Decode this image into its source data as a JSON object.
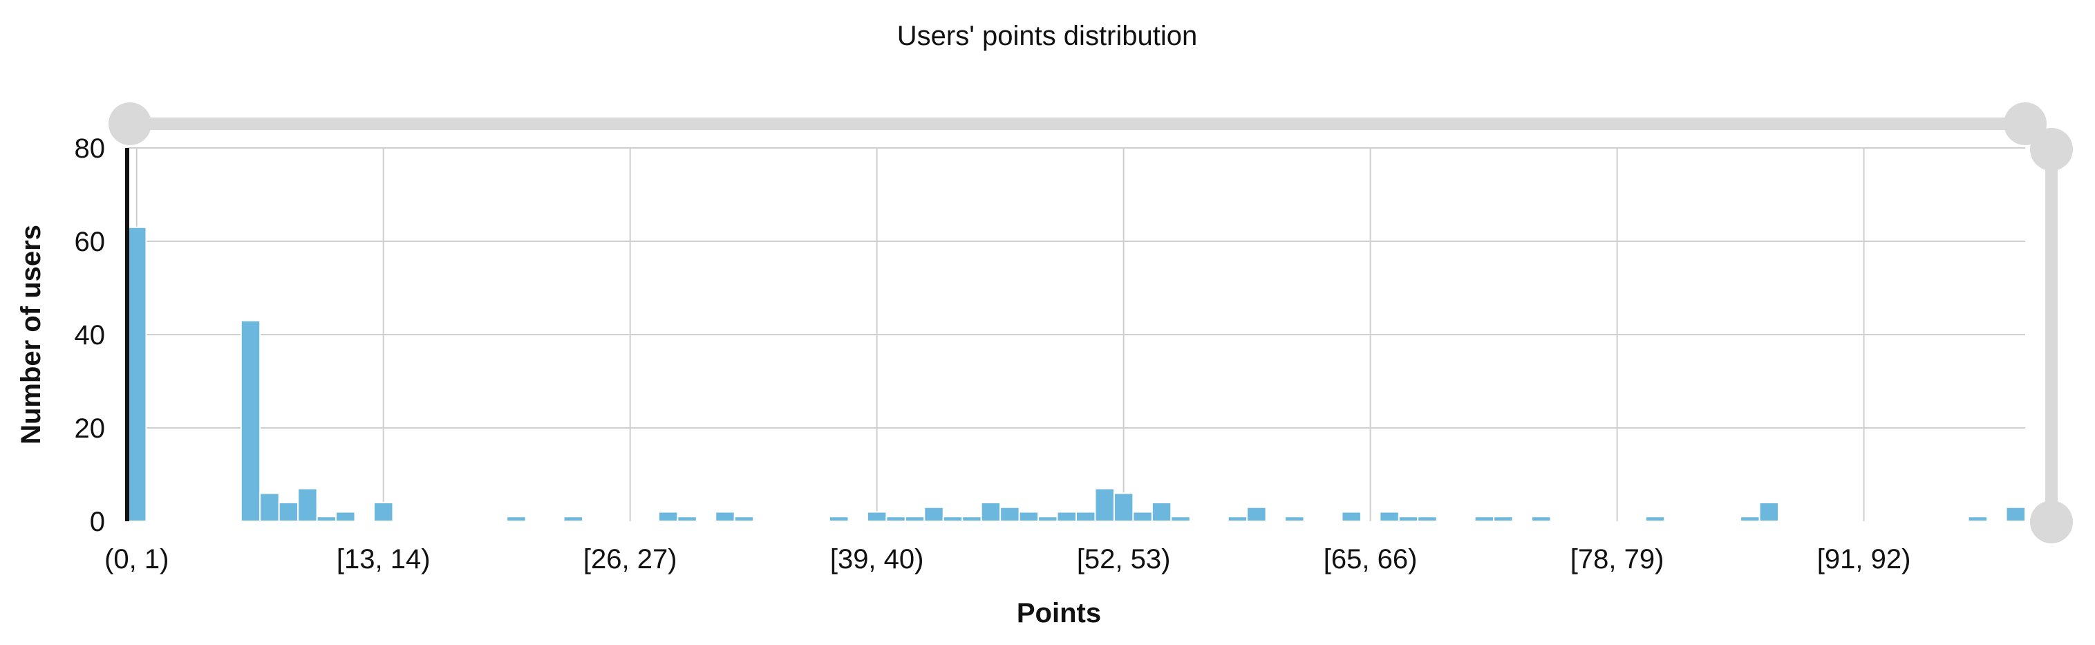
{
  "chart_data": {
    "type": "bar",
    "title": "Users' points distribution",
    "xlabel": "Points",
    "ylabel": "Number of users",
    "ylim": [
      0,
      80
    ],
    "yticks": [
      0,
      20,
      40,
      60,
      80
    ],
    "tick_labels": [
      "(0, 1)",
      "[13, 14)",
      "[26, 27)",
      "[39, 40)",
      "[52, 53)",
      "[65, 66)",
      "[78, 79)",
      "[91, 92)"
    ],
    "tick_bins": [
      0,
      13,
      26,
      39,
      52,
      65,
      78,
      91
    ],
    "bin_count": 100,
    "grid": true,
    "colors": {
      "bar": "#6bb7dd",
      "grid": "#cfcfcf",
      "handle": "#d9d9d9"
    },
    "values": [
      63,
      0,
      0,
      0,
      0,
      0,
      43,
      6,
      4,
      7,
      1,
      2,
      0,
      4,
      0,
      0,
      0,
      0,
      0,
      0,
      1,
      0,
      0,
      1,
      0,
      0,
      0,
      0,
      2,
      1,
      0,
      2,
      1,
      0,
      0,
      0,
      0,
      1,
      0,
      2,
      1,
      1,
      3,
      1,
      1,
      4,
      3,
      2,
      1,
      2,
      2,
      7,
      6,
      2,
      4,
      1,
      0,
      0,
      1,
      3,
      0,
      1,
      0,
      0,
      2,
      0,
      2,
      1,
      1,
      0,
      0,
      1,
      1,
      0,
      1,
      0,
      0,
      0,
      0,
      0,
      1,
      0,
      0,
      0,
      0,
      1,
      4,
      0,
      0,
      0,
      0,
      0,
      0,
      0,
      0,
      0,
      0,
      1,
      0,
      3
    ]
  }
}
